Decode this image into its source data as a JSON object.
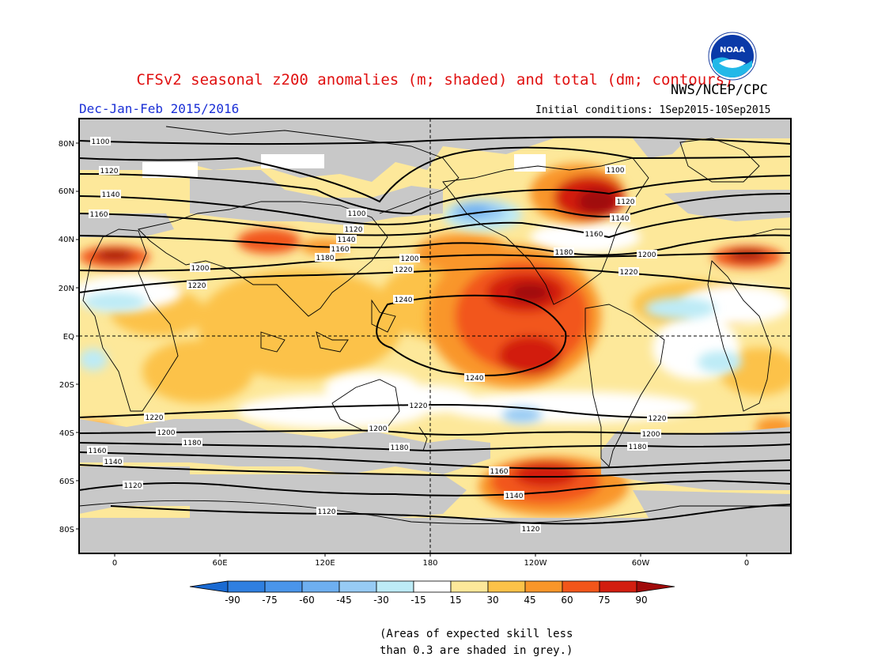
{
  "header": {
    "title": "CFSv2 seasonal z200 anomalies (m; shaded) and total (dm; contours)",
    "agency": "NWS/NCEP/CPC",
    "period": "Dec-Jan-Feb 2015/2016",
    "initial_conditions": "Initial conditions: 1Sep2015-10Sep2015",
    "logo_text": "NOAA"
  },
  "map": {
    "lat_labels": [
      "80N",
      "60N",
      "40N",
      "20N",
      "EQ",
      "20S",
      "40S",
      "60S",
      "80S"
    ],
    "lon_labels": [
      "0",
      "60E",
      "120E",
      "180",
      "120W",
      "60W",
      "0"
    ],
    "contour_labels": [
      "1100",
      "1120",
      "1140",
      "1160",
      "1180",
      "1200",
      "1220",
      "1240"
    ],
    "colors": {
      "grey": "#c8c8c8",
      "frame": "#000000"
    }
  },
  "colorbar": {
    "labels": [
      "-90",
      "-75",
      "-60",
      "-45",
      "-30",
      "-15",
      "15",
      "30",
      "45",
      "60",
      "75",
      "90"
    ],
    "colors": [
      "#1a6ad2",
      "#2f7fe0",
      "#4a95ea",
      "#6eaff0",
      "#97cbf4",
      "#bdebf6",
      "#ffffff",
      "#fde89a",
      "#fcc249",
      "#f9962a",
      "#f2561a",
      "#d21e10",
      "#a00a0a"
    ]
  },
  "footnote": {
    "line1": "(Areas of expected skill less",
    "line2": "than 0.3 are shaded in grey.)"
  }
}
